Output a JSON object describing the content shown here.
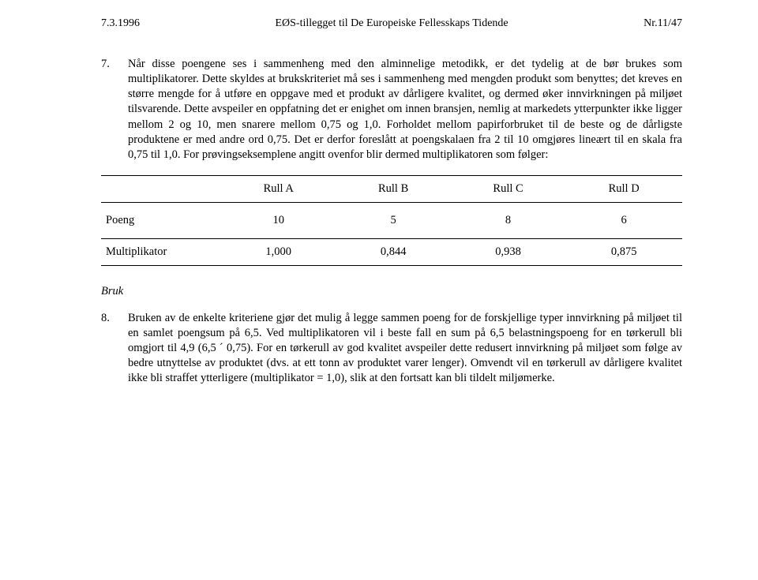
{
  "header": {
    "left": "7.3.1996",
    "center": "EØS-tillegget til De Europeiske Fellesskaps Tidende",
    "right": "Nr.11/47"
  },
  "para7": {
    "num": "7.",
    "text": "Når disse poengene ses i sammenheng med den alminnelige metodikk, er det tydelig at de bør brukes som multiplikatorer. Dette skyldes at brukskriteriet må ses i sammenheng med mengden produkt som benyttes; det kreves en større mengde for å utføre en oppgave med et produkt av dårligere kvalitet, og dermed øker innvirkningen på miljøet tilsvarende. Dette avspeiler en oppfatning det er enighet om innen bransjen, nemlig at markedets ytterpunkter ikke ligger mellom 2 og 10, men snarere mellom 0,75 og 1,0. Forholdet mellom papirforbruket til de beste og de dårligste produktene er med andre ord 0,75. Det er derfor foreslått at poengskalaen fra 2 til 10 omgjøres lineært til en skala fra 0,75 til 1,0. For prøvingseksemplene angitt ovenfor blir dermed multiplikatoren som følger:"
  },
  "table": {
    "columns": [
      "Rull A",
      "Rull B",
      "Rull C",
      "Rull D"
    ],
    "rows": [
      {
        "label": "Poeng",
        "values": [
          "10",
          "5",
          "8",
          "6"
        ]
      },
      {
        "label": "Multiplikator",
        "values": [
          "1,000",
          "0,844",
          "0,938",
          "0,875"
        ]
      }
    ]
  },
  "section_heading": "Bruk",
  "para8": {
    "num": "8.",
    "text": "Bruken av de enkelte kriteriene gjør det mulig å legge sammen poeng for de forskjellige typer innvirkning på miljøet til en samlet poengsum på 6,5. Ved multiplikatoren vil i beste fall en sum på 6,5 belastningspoeng for en tørkerull bli omgjort til 4,9 (6,5 ´ 0,75). For en tørkerull av god kvalitet avspeiler dette redusert innvirkning på miljøet som følge av bedre utnyttelse av produktet (dvs. at ett tonn av produktet varer lenger). Omvendt vil en tørkerull av dårligere kvalitet ikke bli straffet ytterligere (multiplikator = 1,0), slik at den fortsatt kan bli tildelt miljømerke."
  }
}
